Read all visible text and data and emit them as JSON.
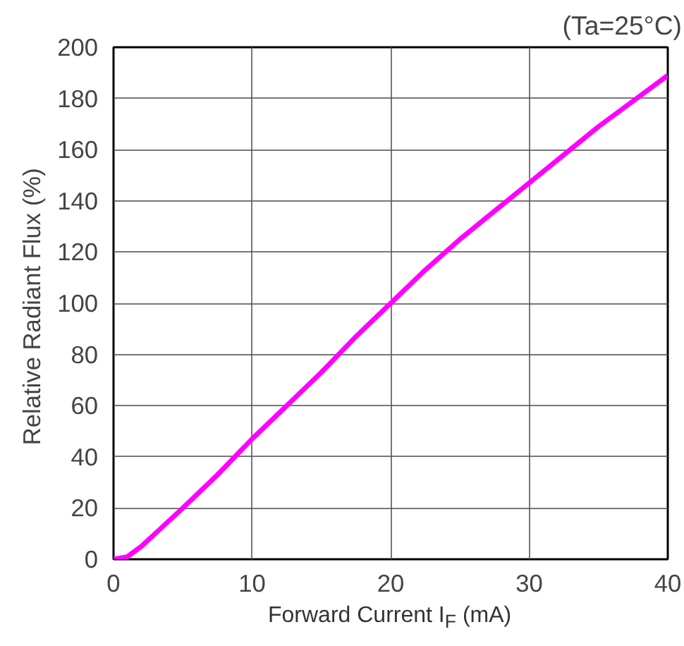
{
  "chart_data": {
    "type": "line",
    "annotations": [
      "(Ta=25°C)"
    ],
    "xlabel": "Forward Current I$_{F}$ (mA)",
    "ylabel": "Relative Radiant Flux  (%)",
    "x": [
      0,
      1,
      2,
      3,
      4,
      5,
      7.5,
      10,
      12.5,
      15,
      17.5,
      20,
      22.5,
      25,
      27.5,
      30,
      32.5,
      35,
      37.5,
      40
    ],
    "series": [
      {
        "color": "#ff00ff",
        "values": [
          0,
          1,
          5,
          10,
          15,
          20,
          33,
          47,
          60,
          73,
          87,
          100,
          113,
          125,
          136,
          147,
          158,
          169,
          179,
          189
        ]
      }
    ],
    "xlim": [
      0,
      40
    ],
    "xticks": [
      0,
      10,
      20,
      30,
      40
    ],
    "ylim": [
      0,
      200
    ],
    "yticks": [
      0,
      20,
      40,
      60,
      80,
      100,
      120,
      140,
      160,
      180,
      200
    ],
    "grid": true,
    "line_style": "solid"
  }
}
